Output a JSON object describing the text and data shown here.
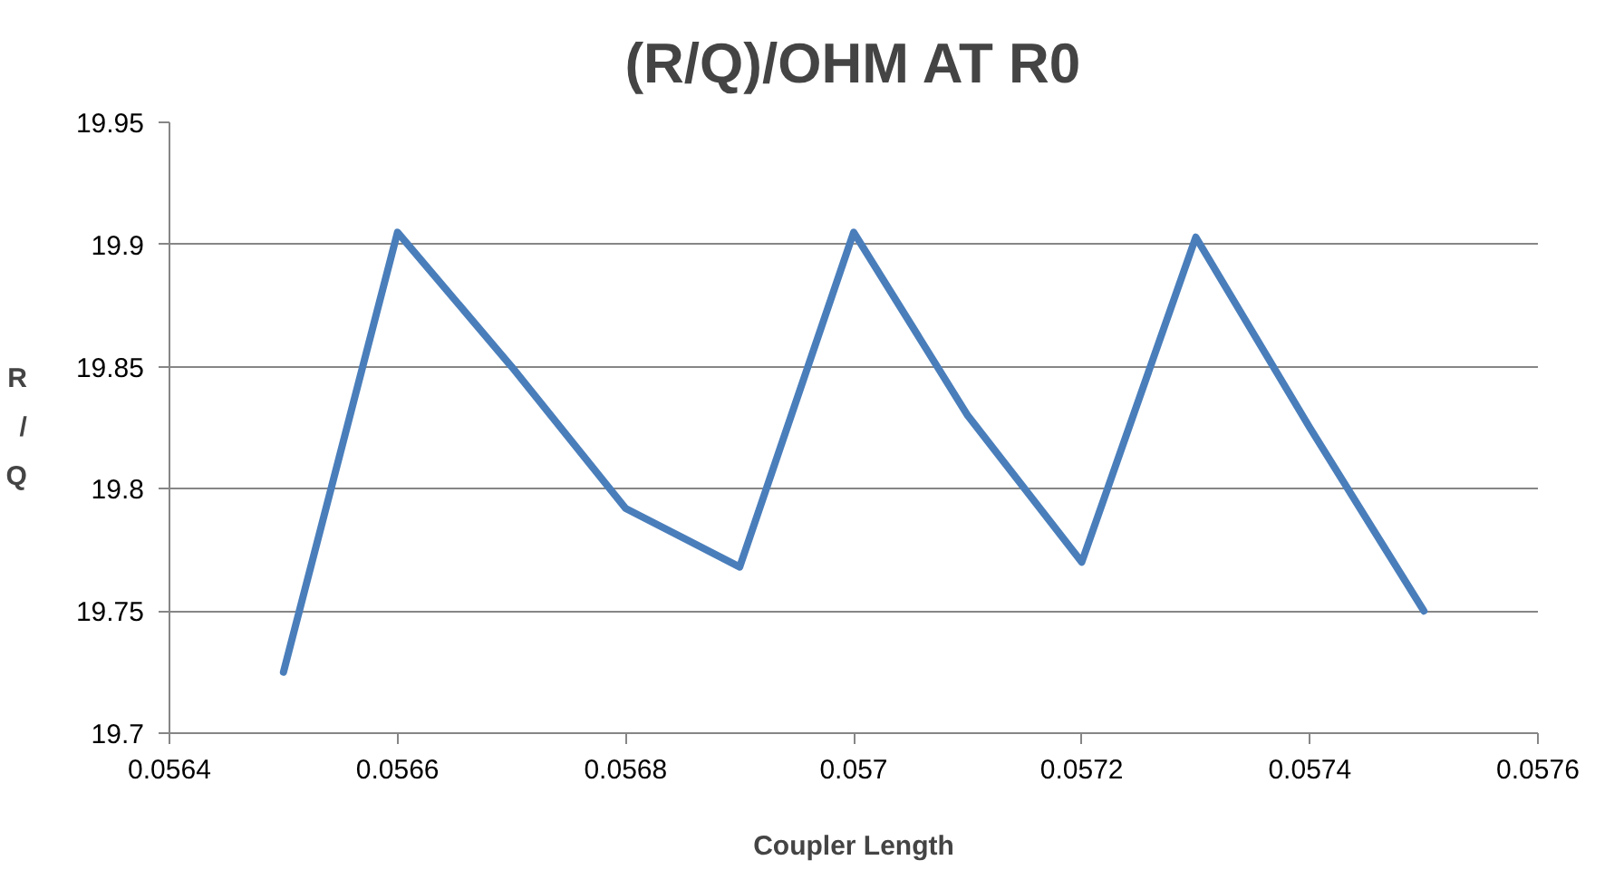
{
  "chart_data": {
    "type": "line",
    "title": "(R/Q)/OHM AT R0",
    "xlabel": "Coupler Length",
    "ylabel": "R/Q",
    "x": [
      0.0565,
      0.0566,
      0.0567,
      0.0568,
      0.0569,
      0.057,
      0.0571,
      0.0572,
      0.0573,
      0.0574,
      0.0575
    ],
    "series": [
      {
        "color": "#4a7ebb",
        "values": [
          19.725,
          19.905,
          19.85,
          19.792,
          19.768,
          19.905,
          19.83,
          19.77,
          19.903,
          19.825,
          19.75
        ]
      }
    ],
    "xlim": [
      0.0564,
      0.0576
    ],
    "xticks": [
      0.0564,
      0.0566,
      0.0568,
      0.057,
      0.0572,
      0.0574,
      0.0576
    ],
    "ylim": [
      19.7,
      19.95
    ],
    "yticks": [
      19.7,
      19.75,
      19.8,
      19.85,
      19.9,
      19.95
    ],
    "grid": "y",
    "marker": "none",
    "line_style": "solid"
  }
}
